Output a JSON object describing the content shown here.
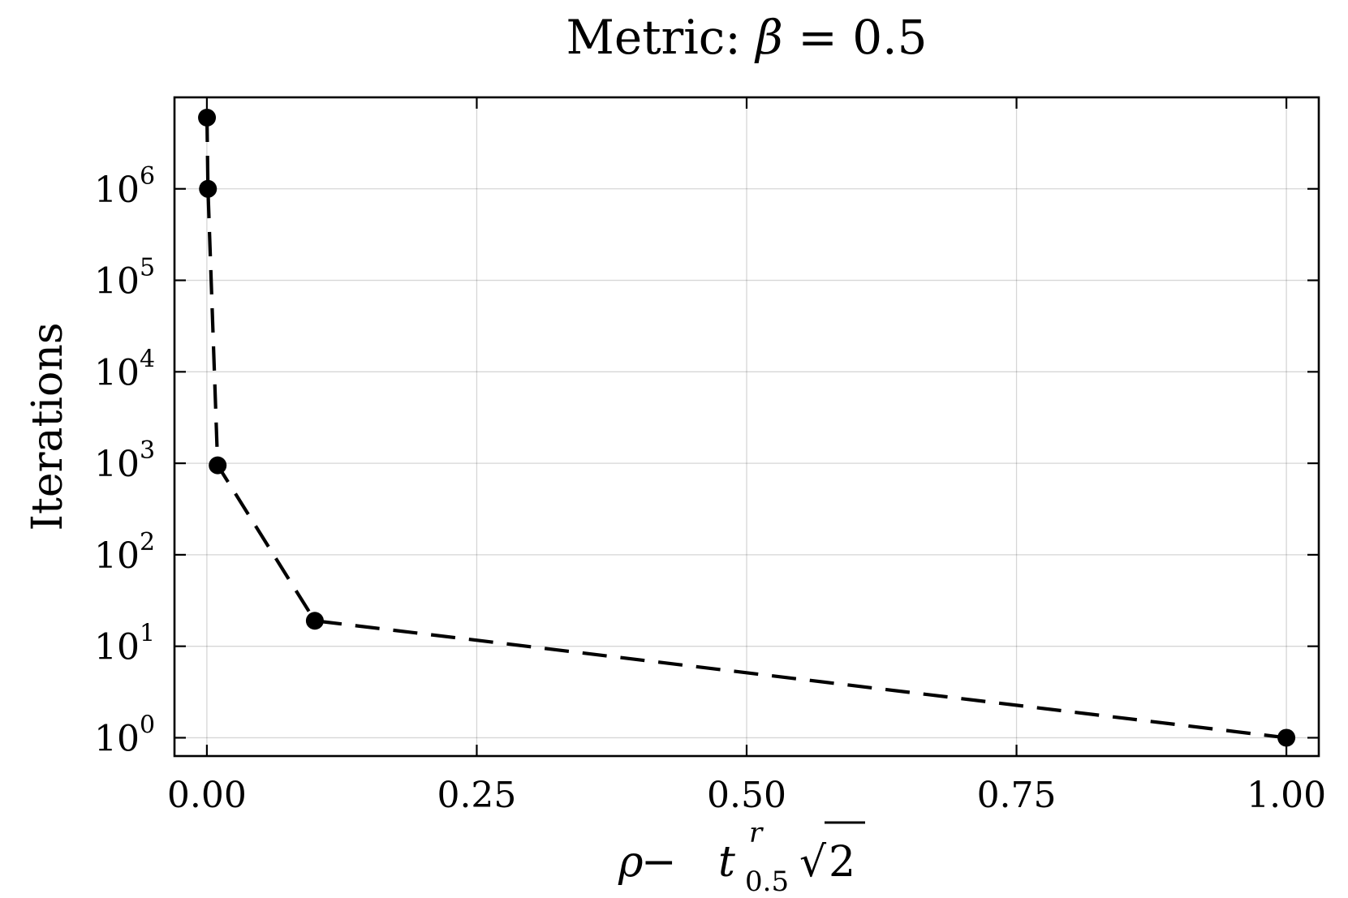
{
  "chart_data": {
    "type": "line",
    "title": {
      "prefix": "Metric: ",
      "symbol": "β",
      "equals": " = ",
      "value": "0.5"
    },
    "xlabel": {
      "rho": "ρ",
      "minus": " − ",
      "t": "t",
      "t_sup": "r",
      "t_sub": "0.5",
      "sqrt": "√",
      "radicand": "2"
    },
    "ylabel": "Iterations",
    "x_scale": "linear",
    "y_scale": "log10",
    "xlim": [
      -0.03,
      1.03
    ],
    "ylim_log10": [
      -0.2,
      7.0
    ],
    "x_ticks": [
      {
        "value": 0.0,
        "label": "0.00"
      },
      {
        "value": 0.25,
        "label": "0.25"
      },
      {
        "value": 0.5,
        "label": "0.50"
      },
      {
        "value": 0.75,
        "label": "0.75"
      },
      {
        "value": 1.0,
        "label": "1.00"
      }
    ],
    "y_ticks": [
      {
        "value": 1,
        "base": "10",
        "exp": "0"
      },
      {
        "value": 10,
        "base": "10",
        "exp": "1"
      },
      {
        "value": 100,
        "base": "10",
        "exp": "2"
      },
      {
        "value": 1000,
        "base": "10",
        "exp": "3"
      },
      {
        "value": 10000,
        "base": "10",
        "exp": "4"
      },
      {
        "value": 100000,
        "base": "10",
        "exp": "5"
      },
      {
        "value": 1000000,
        "base": "10",
        "exp": "6"
      }
    ],
    "grid": true,
    "legend": "none",
    "series": [
      {
        "name": "Iterations",
        "line_style": "dashed",
        "marker": "circle",
        "color": "#000000",
        "x": [
          0.0001,
          0.001,
          0.01,
          0.1,
          1.0
        ],
        "y": [
          6000000,
          1000000,
          950,
          19,
          1
        ]
      }
    ]
  }
}
